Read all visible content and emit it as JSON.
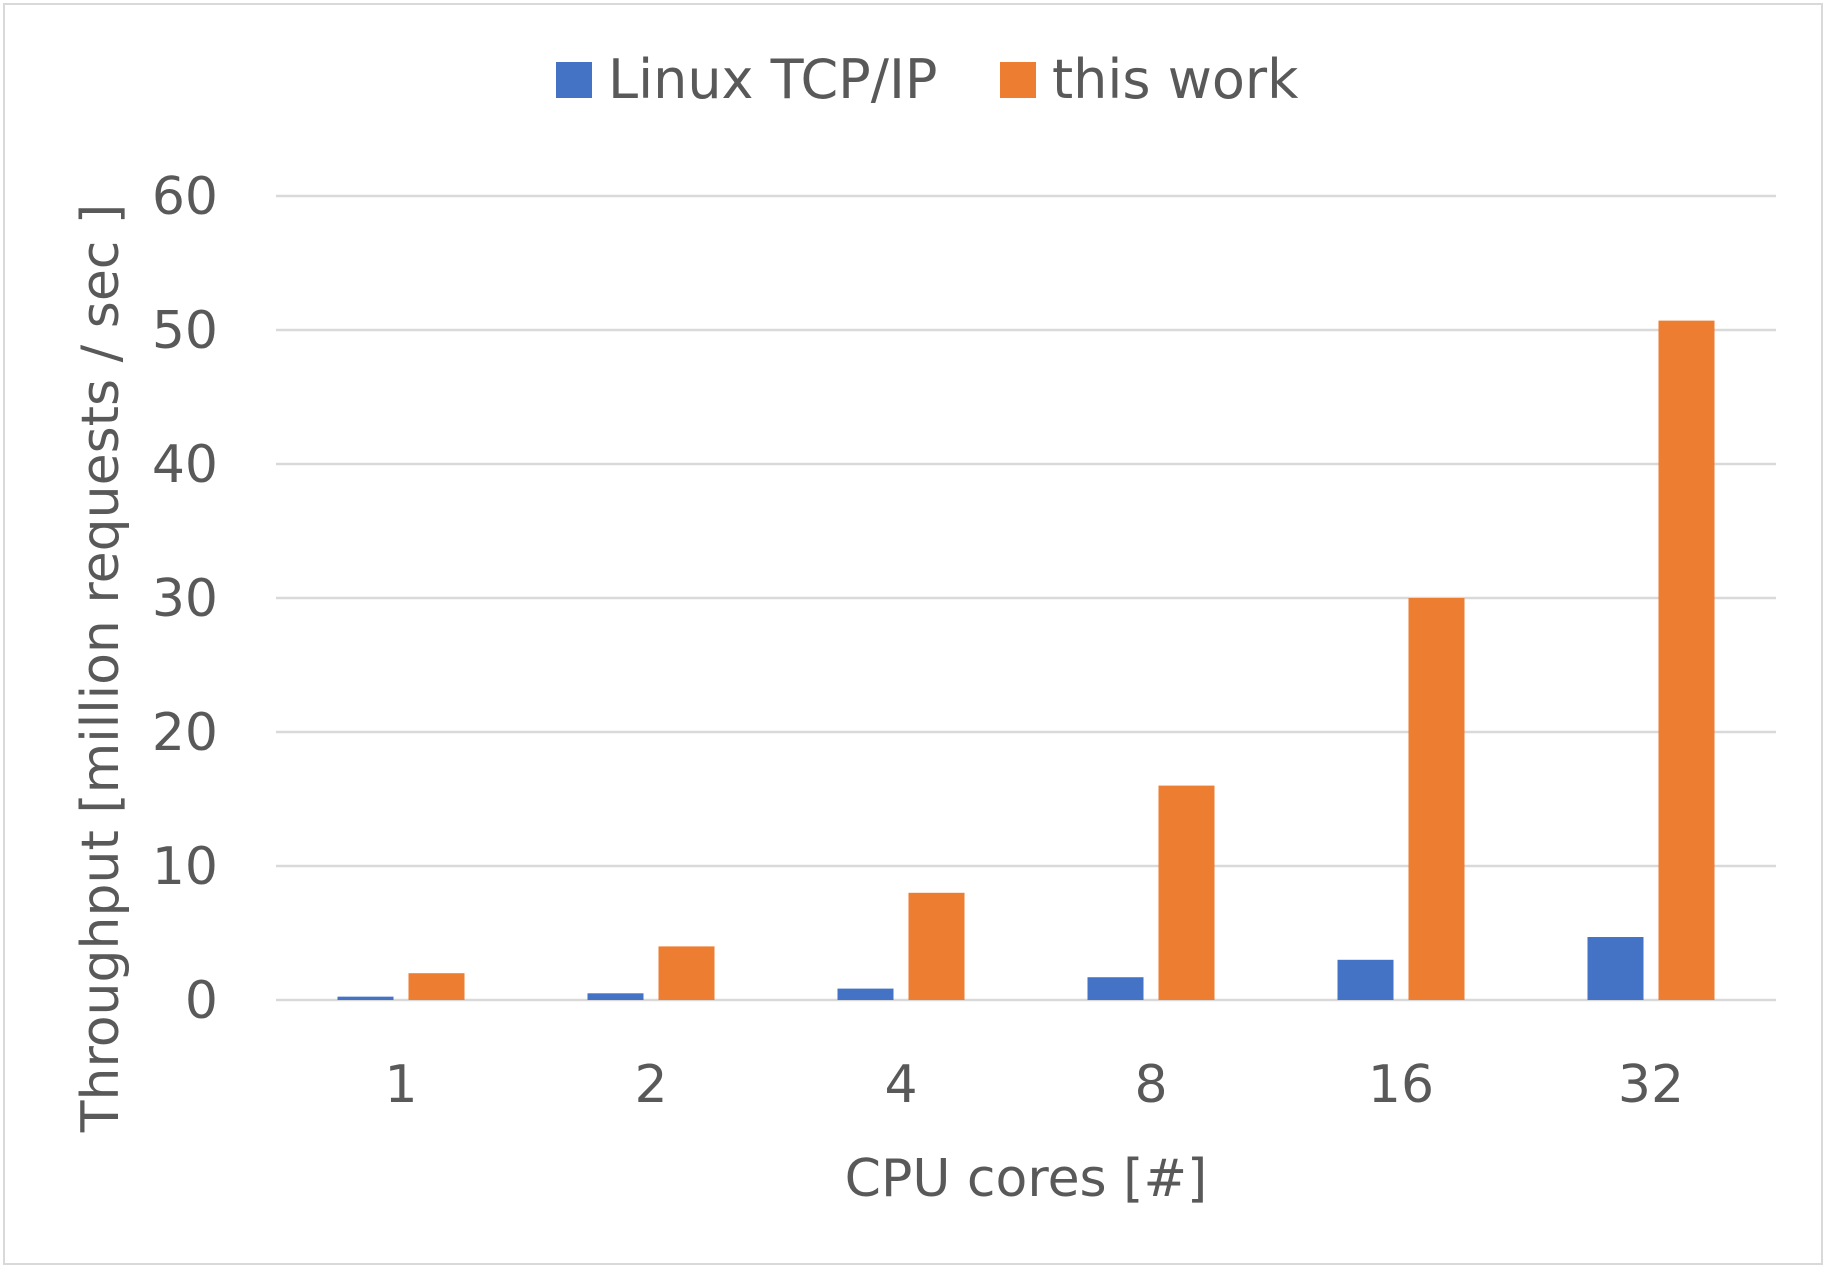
{
  "chart_data": {
    "type": "bar",
    "title": "",
    "xlabel": "CPU cores [#]",
    "ylabel": "Throughput [million requests / sec ]",
    "categories": [
      "1",
      "2",
      "4",
      "8",
      "16",
      "32"
    ],
    "series": [
      {
        "name": "Linux TCP/IP",
        "color": "#4472c4",
        "values": [
          0.25,
          0.5,
          0.85,
          1.7,
          3.0,
          4.7
        ]
      },
      {
        "name": "this work",
        "color": "#ed7d31",
        "values": [
          2.0,
          4.0,
          8.0,
          16.0,
          30.0,
          50.7
        ]
      }
    ],
    "ylim": [
      0,
      60
    ],
    "yticks": [
      "0",
      "10",
      "20",
      "30",
      "40",
      "50",
      "60"
    ],
    "grid": true,
    "legend": "top-center",
    "gridline_color": "#d9d9d9"
  }
}
